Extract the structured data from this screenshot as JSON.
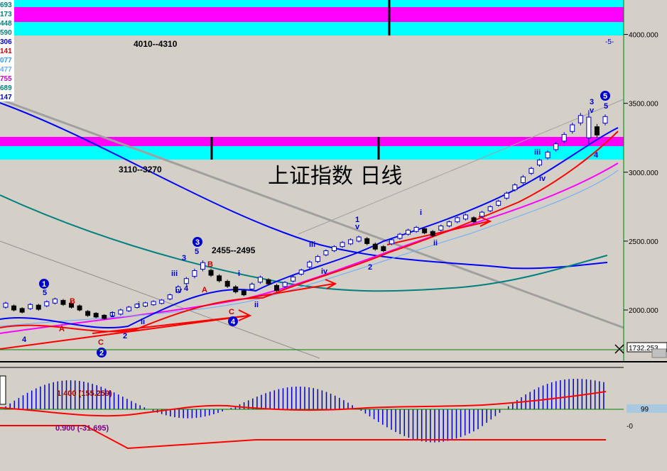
{
  "chart_data": {
    "type": "candlestick",
    "title": "上证指数  日线",
    "timeframe": "日线",
    "colors": {
      "background": "#d4d0c8",
      "up": "#0000cc",
      "down": "#000000",
      "magenta_band": "#ff00ff",
      "cyan_band": "#00ffff",
      "ma_short": "#0000ff",
      "ma_teal": "#008080",
      "ma_red": "#ff0000",
      "ma_pink": "#ff00ff",
      "ma_lightblue": "#66aaff",
      "trendline_gray": "#a0a0a0"
    },
    "y_axis": {
      "min": 1650,
      "max": 4250,
      "ticks": [
        "4000.000",
        "3500.000",
        "3000.000",
        "2500.000",
        "2000.000"
      ],
      "tick_values": [
        4000,
        3500,
        3000,
        2500,
        2000
      ],
      "current_label": "1732.253",
      "corner_marker": "-5-"
    },
    "left_values": [
      "693",
      "173",
      "448",
      "590",
      "306",
      "141",
      "077",
      "477",
      "755",
      "689",
      "147"
    ],
    "left_value_colors": [
      "#008080",
      "#008080",
      "#008080",
      "#008080",
      "#0000cc",
      "#cc0000",
      "#3399ff",
      "#66aaff",
      "#cc00cc",
      "#008080",
      "#0000cc"
    ],
    "zones": [
      {
        "label": "4010--4310",
        "lo": 4010,
        "hi": 4310
      },
      {
        "label": "3110--3270",
        "lo": 3110,
        "hi": 3270
      },
      {
        "label": "2455--2495",
        "lo": 2455,
        "hi": 2495
      }
    ],
    "candles_hl": [
      [
        2060,
        2010
      ],
      [
        2040,
        1990
      ],
      [
        2020,
        1975
      ],
      [
        2050,
        2000
      ],
      [
        2045,
        1995
      ],
      [
        2070,
        2020
      ],
      [
        2090,
        2040
      ],
      [
        2080,
        2030
      ],
      [
        2060,
        2010
      ],
      [
        2040,
        1990
      ],
      [
        2000,
        1950
      ],
      [
        1985,
        1940
      ],
      [
        1970,
        1930
      ],
      [
        1990,
        1950
      ],
      [
        2010,
        1960
      ],
      [
        2030,
        1985
      ],
      [
        2050,
        2010
      ],
      [
        2060,
        2020
      ],
      [
        2070,
        2030
      ],
      [
        2080,
        2040
      ],
      [
        2120,
        2070
      ],
      [
        2180,
        2120
      ],
      [
        2240,
        2180
      ],
      [
        2300,
        2230
      ],
      [
        2360,
        2280
      ],
      [
        2300,
        2240
      ],
      [
        2260,
        2200
      ],
      [
        2220,
        2160
      ],
      [
        2180,
        2120
      ],
      [
        2150,
        2100
      ],
      [
        2200,
        2140
      ],
      [
        2250,
        2190
      ],
      [
        2230,
        2180
      ],
      [
        2190,
        2130
      ],
      [
        2210,
        2160
      ],
      [
        2250,
        2200
      ],
      [
        2300,
        2250
      ],
      [
        2360,
        2300
      ],
      [
        2400,
        2340
      ],
      [
        2440,
        2390
      ],
      [
        2470,
        2420
      ],
      [
        2500,
        2450
      ],
      [
        2520,
        2470
      ],
      [
        2540,
        2490
      ],
      [
        2530,
        2470
      ],
      [
        2490,
        2430
      ],
      [
        2470,
        2420
      ],
      [
        2520,
        2470
      ],
      [
        2560,
        2510
      ],
      [
        2590,
        2540
      ],
      [
        2610,
        2560
      ],
      [
        2600,
        2550
      ],
      [
        2580,
        2530
      ],
      [
        2620,
        2570
      ],
      [
        2650,
        2600
      ],
      [
        2680,
        2630
      ],
      [
        2700,
        2650
      ],
      [
        2680,
        2630
      ],
      [
        2720,
        2670
      ],
      [
        2760,
        2710
      ],
      [
        2800,
        2750
      ],
      [
        2860,
        2800
      ],
      [
        2920,
        2860
      ],
      [
        2980,
        2910
      ],
      [
        3040,
        2980
      ],
      [
        3100,
        3040
      ],
      [
        3160,
        3090
      ],
      [
        3220,
        3150
      ],
      [
        3290,
        3210
      ],
      [
        3360,
        3280
      ],
      [
        3430,
        3340
      ],
      [
        3450,
        3200
      ],
      [
        3350,
        3250
      ],
      [
        3420,
        3340
      ]
    ],
    "volume_panel": {
      "labels": [
        "1.400 (155.259)",
        "0.900 (-31.695)"
      ],
      "right_box": "99",
      "zero_label": "-0"
    },
    "wave_labels": [
      "1",
      "2",
      "3",
      "4",
      "5",
      "A",
      "B",
      "C",
      "i",
      "ii",
      "iii",
      "iv",
      "v"
    ]
  }
}
